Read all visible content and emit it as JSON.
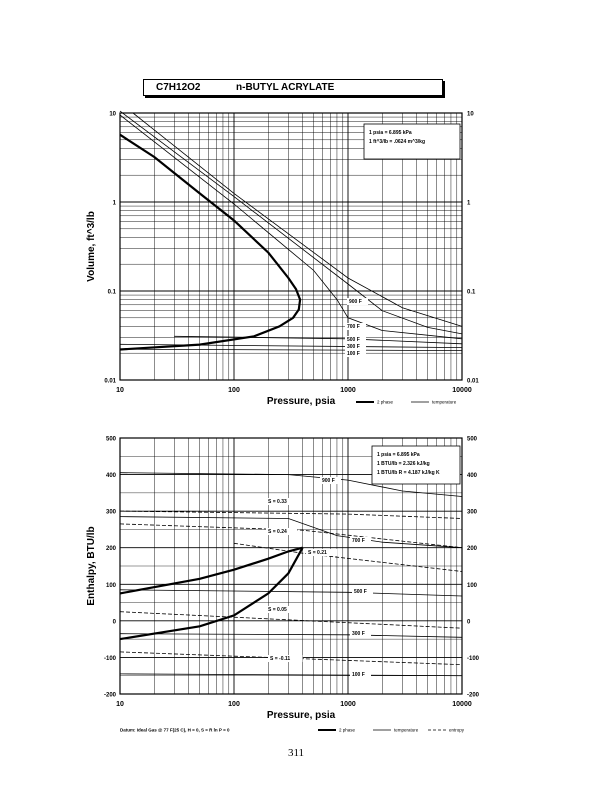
{
  "header": {
    "formula": "C7H12O2",
    "name": "n-BUTYL ACRYLATE"
  },
  "page_number": "311",
  "chart_data": [
    {
      "type": "line",
      "xlabel": "Pressure, psia",
      "ylabel": "Volume, ft^3/lb",
      "xscale": "log",
      "yscale": "log",
      "xlim": [
        10,
        10000
      ],
      "ylim": [
        0.01,
        10
      ],
      "x_ticks": [
        "10",
        "100",
        "1000",
        "10000"
      ],
      "y_ticks": [
        "10",
        "1",
        "0.1",
        "0.01"
      ],
      "y_ticks_right": [
        "10",
        "1",
        "0.1",
        "0.01"
      ],
      "info": [
        "1 psia = 6.895 kPa",
        "1 ft^3/lb = .0624 m^3/kg"
      ],
      "legend": [
        "2 phase",
        "temperature"
      ],
      "legend_placement": "bottom-right",
      "grid": true,
      "series": [
        {
          "kind": "2 phase",
          "points": [
            [
              10,
              5.7
            ],
            [
              20,
              3.2
            ],
            [
              50,
              1.25
            ],
            [
              100,
              0.62
            ],
            [
              200,
              0.27
            ],
            [
              300,
              0.14
            ],
            [
              350,
              0.105
            ],
            [
              380,
              0.08
            ],
            [
              370,
              0.062
            ],
            [
              330,
              0.05
            ],
            [
              250,
              0.04
            ],
            [
              150,
              0.031
            ],
            [
              50,
              0.025
            ],
            [
              10,
              0.022
            ]
          ]
        },
        {
          "label": "100 F",
          "points": [
            [
              10,
              0.0222
            ],
            [
              10000,
              0.0214
            ]
          ]
        },
        {
          "label": "300 F",
          "points": [
            [
              10,
              0.0252
            ],
            [
              10000,
              0.0231
            ]
          ]
        },
        {
          "label": "500 F",
          "points": [
            [
              30,
              0.031
            ],
            [
              1000,
              0.029
            ],
            [
              10000,
              0.0255
            ]
          ]
        },
        {
          "label": "700 F",
          "points": [
            [
              10,
              9.5
            ],
            [
              100,
              0.95
            ],
            [
              500,
              0.17
            ],
            [
              800,
              0.08
            ],
            [
              1000,
              0.05
            ],
            [
              2000,
              0.036
            ],
            [
              10000,
              0.029
            ]
          ]
        },
        {
          "label": "900 F",
          "points": [
            [
              10,
              10.5
            ],
            [
              100,
              1.15
            ],
            [
              1000,
              0.12
            ],
            [
              2000,
              0.06
            ],
            [
              5000,
              0.039
            ],
            [
              10000,
              0.033
            ]
          ]
        },
        {
          "label": "",
          "points": [
            [
              13,
              10
            ],
            [
              100,
              1.25
            ],
            [
              1000,
              0.14
            ],
            [
              3000,
              0.065
            ],
            [
              10000,
              0.04
            ]
          ]
        }
      ],
      "annotations": [
        "900 F",
        "700 F",
        "500 F",
        "300 F",
        "100 F"
      ]
    },
    {
      "type": "line",
      "xlabel": "Pressure, psia",
      "ylabel": "Enthalpy, BTU/lb",
      "xscale": "log",
      "xlim": [
        10,
        10000
      ],
      "ylim": [
        -200,
        500
      ],
      "x_ticks": [
        "10",
        "100",
        "1000",
        "10000"
      ],
      "y_ticks": [
        "500",
        "400",
        "300",
        "200",
        "100",
        "0",
        "-100",
        "-200"
      ],
      "y_ticks_right": [
        "500",
        "400",
        "300",
        "200",
        "100",
        "0",
        "-100",
        "-200"
      ],
      "info": [
        "1 psia = 6.895 kPa",
        "1 BTU/lb = 2.326 kJ/kg",
        "1 BTU/lb R = 4.187 kJ/kg K"
      ],
      "legend": [
        "2 phase",
        "temperature",
        "entropy"
      ],
      "legend_placement": "bottom-right",
      "footnote": "Datum: Ideal Gas @ 77 F(25 C), H = 0, S = R ln P = 0",
      "grid": true,
      "series": [
        {
          "kind": "2 phase upper",
          "points": [
            [
              10,
              75
            ],
            [
              50,
              115
            ],
            [
              100,
              140
            ],
            [
              200,
              170
            ],
            [
              300,
              190
            ],
            [
              400,
              200
            ]
          ]
        },
        {
          "kind": "2 phase lower",
          "points": [
            [
              10,
              -50
            ],
            [
              50,
              -15
            ],
            [
              100,
              15
            ],
            [
              200,
              75
            ],
            [
              300,
              130
            ],
            [
              400,
              200
            ]
          ]
        },
        {
          "label": "100 F",
          "points": [
            [
              10,
              -145
            ],
            [
              10000,
              -150
            ]
          ]
        },
        {
          "label": "300 F",
          "points": [
            [
              10,
              -35
            ],
            [
              1000,
              -38
            ],
            [
              10000,
              -45
            ]
          ]
        },
        {
          "label": "500 F",
          "points": [
            [
              10,
              85
            ],
            [
              1000,
              78
            ],
            [
              10000,
              68
            ]
          ]
        },
        {
          "label": "700 F",
          "points": [
            [
              10,
              285
            ],
            [
              300,
              280
            ],
            [
              800,
              233
            ],
            [
              2000,
              215
            ],
            [
              10000,
              200
            ]
          ]
        },
        {
          "label": "900 F",
          "points": [
            [
              10,
              405
            ],
            [
              300,
              400
            ],
            [
              1000,
              385
            ],
            [
              3000,
              355
            ],
            [
              10000,
              340
            ]
          ]
        }
      ],
      "entropy_lines": [
        {
          "label": "S = 0.33",
          "points": [
            [
              10,
              300
            ],
            [
              1000,
              292
            ],
            [
              10000,
              280
            ]
          ]
        },
        {
          "label": "S = 0.24",
          "points": [
            [
              10,
              265
            ],
            [
              400,
              248
            ],
            [
              10000,
              200
            ]
          ]
        },
        {
          "label": "S = 0.21",
          "points": [
            [
              100,
              212
            ],
            [
              400,
              185
            ],
            [
              10000,
              135
            ]
          ]
        },
        {
          "label": "S = 0.05",
          "points": [
            [
              10,
              25
            ],
            [
              10000,
              -20
            ]
          ]
        },
        {
          "label": "S = -0.11",
          "points": [
            [
              10,
              -85
            ],
            [
              10000,
              -120
            ]
          ]
        }
      ],
      "annotations": [
        "900 F",
        "S = 0.33",
        "S = 0.24",
        "700 F",
        "S = 0.21",
        "500 F",
        "S = 0.05",
        "300 F",
        "S = -0.11",
        "100 F"
      ]
    }
  ]
}
